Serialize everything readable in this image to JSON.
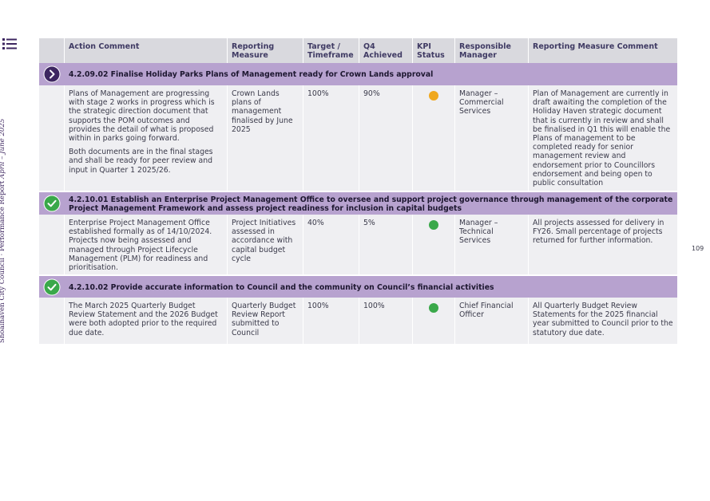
{
  "side_title": {
    "org": "Shoalhaven City Council",
    "separator": "· ",
    "report": "Performance Report ",
    "period": "April – June 2025"
  },
  "page_number": "109",
  "colors": {
    "section_band": "#b7a2cf",
    "header_band": "#d9d9de",
    "amber": "#f0a81e",
    "green": "#3aa84a",
    "purple": "#3d2660"
  },
  "table": {
    "headers": [
      "Action Comment",
      "Reporting Measure",
      "Target / Timeframe",
      "Q4 Achieved",
      "KPI Status",
      "Responsible Manager",
      "Reporting Measure Comment"
    ],
    "sections": [
      {
        "icon": "chevron-right-icon",
        "title": "4.2.09.02 Finalise Holiday Parks Plans of Management ready for Crown Lands approval",
        "comment_paragraphs": [
          "Plans of Management are progressing with stage 2 works in progress which is the strategic direction document that supports the POM outcomes and provides the detail of what is proposed within in parks going forward.",
          "Both documents are in the final stages and shall be ready for peer review and input in Quarter 1 2025/26."
        ],
        "measure": "Crown Lands plans of management finalised by June 2025",
        "target": "100%",
        "achieved": "90%",
        "kpi": "amber",
        "manager": "Manager – Commercial Services",
        "measure_comment": "Plan of Management are currently in draft awaiting the completion of the Holiday Haven strategic document that is currently in review and shall be finalised in Q1 this will enable the Plans of management to be completed ready for senior management review and endorsement prior to Councillors endorsement and being open to public consultation"
      },
      {
        "icon": "check-circle-icon",
        "title": "4.2.10.01 Establish an Enterprise Project Management Office to oversee and support project governance through management of the corporate Project Management Framework and assess project readiness for inclusion in capital budgets",
        "comment_paragraphs": [
          "Enterprise Project Management Office established formally as of 14/10/2024. Projects now being assessed and managed through Project Lifecycle Management (PLM) for readiness and prioritisation."
        ],
        "measure": "Project Initiatives assessed in accordance with capital budget cycle",
        "target": "40%",
        "achieved": "5%",
        "kpi": "green",
        "manager": "Manager – Technical Services",
        "measure_comment": "All projects assessed for delivery in FY26. Small percentage of projects returned for further information."
      },
      {
        "icon": "check-circle-icon",
        "title": "4.2.10.02 Provide accurate information to Council and the community on Council’s financial activities",
        "comment_paragraphs": [
          "The March 2025 Quarterly Budget Review Statement and the 2026 Budget were both adopted prior to the required due date."
        ],
        "measure": "Quarterly Budget Review Report submitted to Council",
        "target": "100%",
        "achieved": "100%",
        "kpi": "green",
        "manager": "Chief Financial Officer",
        "measure_comment": "All Quarterly Budget Review Statements for the 2025 financial year submitted to Council prior to the statutory due date."
      }
    ]
  }
}
